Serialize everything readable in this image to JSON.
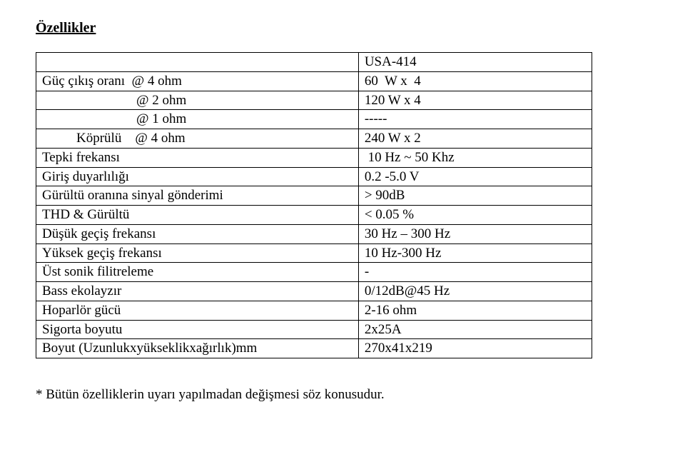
{
  "title": "Özellikler",
  "rows": [
    {
      "label": "",
      "value": "USA-414",
      "indent": ""
    },
    {
      "label": "Güç çıkış oranı  @ 4 ohm",
      "value": "60  W x  4",
      "indent": ""
    },
    {
      "label": "@ 2 ohm",
      "value": "120 W x 4",
      "indent": "indent1"
    },
    {
      "label": "@ 1 ohm",
      "value": "-----",
      "indent": "indent1"
    },
    {
      "label": "Köprülü    @ 4 ohm",
      "value": "240 W x 2",
      "indent": "indent2"
    },
    {
      "label": "Tepki frekansı",
      "value": " 10 Hz ~ 50 Khz",
      "indent": ""
    },
    {
      "label": "Giriş duyarlılığı",
      "value": "0.2 -5.0 V",
      "indent": ""
    },
    {
      "label": "Gürültü oranına sinyal gönderimi",
      "value": "> 90dB",
      "indent": ""
    },
    {
      "label": "THD & Gürültü",
      "value": "< 0.05 %",
      "indent": ""
    },
    {
      "label": "Düşük geçiş frekansı",
      "value": "30 Hz – 300 Hz",
      "indent": ""
    },
    {
      "label": "Yüksek geçiş frekansı",
      "value": "10 Hz-300 Hz",
      "indent": ""
    },
    {
      "label": "Üst sonik filitreleme",
      "value": "-",
      "indent": ""
    },
    {
      "label": "Bass ekolayzır",
      "value": "0/12dB@45 Hz",
      "indent": ""
    },
    {
      "label": "Hoparlör gücü",
      "value": "2-16 ohm",
      "indent": ""
    },
    {
      "label": "Sigorta boyutu",
      "value": "2x25A",
      "indent": ""
    },
    {
      "label": "Boyut (Uzunlukxyükseklikxağırlık)mm",
      "value": "270x41x219",
      "indent": ""
    }
  ],
  "footnote": "* Bütün özelliklerin uyarı yapılmadan değişmesi söz konusudur."
}
